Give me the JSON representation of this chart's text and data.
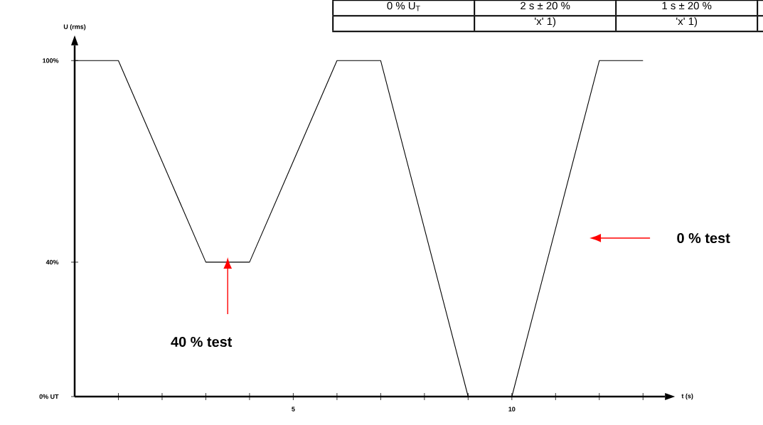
{
  "chart_data": {
    "type": "line",
    "xlabel": "t (s)",
    "ylabel": "U (rms)",
    "x": [
      0,
      1,
      3,
      4,
      6,
      7,
      9,
      10,
      12,
      13
    ],
    "series": [
      {
        "color": "#000000",
        "values": [
          100,
          100,
          40,
          40,
          100,
          100,
          0,
          0,
          100,
          100
        ]
      }
    ],
    "xlim": [
      0,
      13.5
    ],
    "ylim": [
      0,
      104.5
    ],
    "xticks": [
      {
        "value": 1,
        "label": null
      },
      {
        "value": 2,
        "label": null
      },
      {
        "value": 3,
        "label": null
      },
      {
        "value": 4,
        "label": null
      },
      5,
      {
        "value": 6,
        "label": null
      },
      {
        "value": 7,
        "label": null
      },
      {
        "value": 8,
        "label": null
      },
      {
        "value": 9,
        "label": null
      },
      10,
      {
        "value": 11,
        "label": null
      },
      {
        "value": 12,
        "label": null
      },
      {
        "value": 13,
        "label": null
      }
    ],
    "yticks": [
      {
        "value": 0,
        "label": "0% UT"
      },
      {
        "value": 40,
        "label": "40%"
      },
      {
        "value": 100,
        "label": "100%"
      }
    ],
    "annotations": [
      "40 % test",
      "0 % test",
      "0 % U$_{T}$",
      "2 s ± 20 %",
      "1 s ± 20 %",
      "'x'   1)",
      "'x'   1)"
    ]
  }
}
